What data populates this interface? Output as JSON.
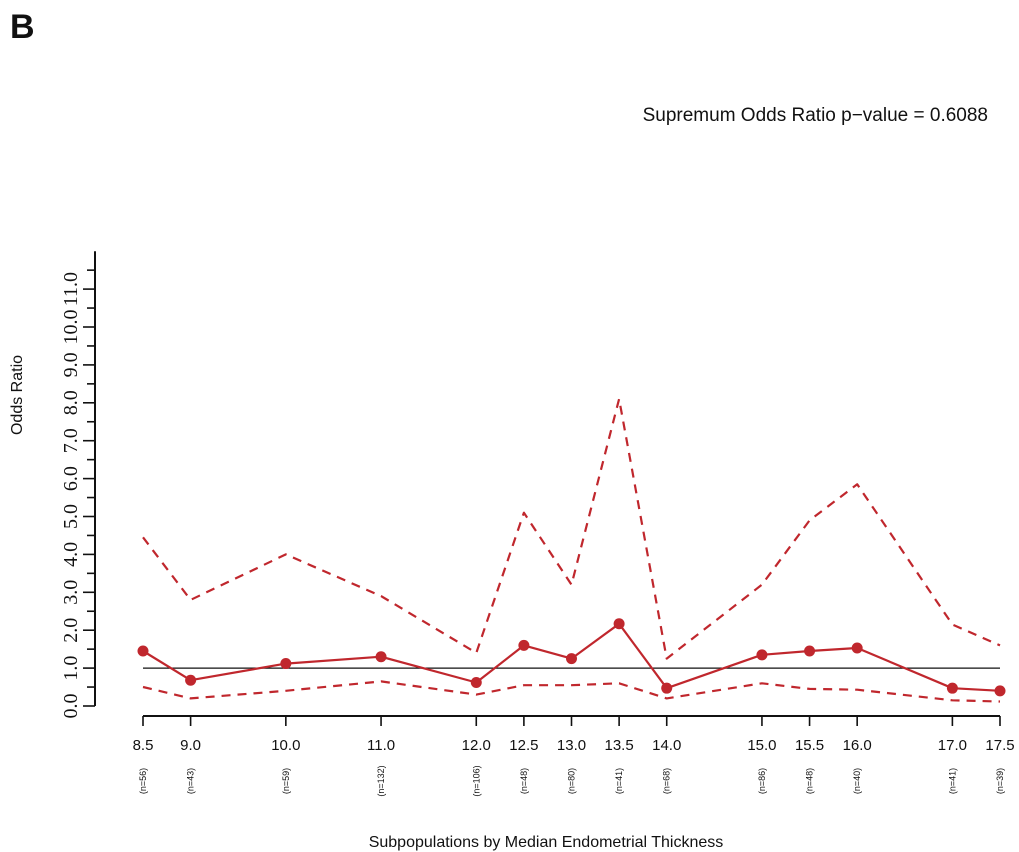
{
  "panel_label": "B",
  "chart_data": {
    "type": "line",
    "title": "",
    "annotation": "Supremum Odds Ratio p−value = 0.6088",
    "xlabel": "Subpopulations by Median Endometrial Thickness",
    "ylabel": "Odds Ratio",
    "x": [
      8.5,
      9.0,
      10.0,
      11.0,
      12.0,
      12.5,
      13.0,
      13.5,
      14.0,
      15.0,
      15.5,
      16.0,
      17.0,
      17.5
    ],
    "x_tick_labels": [
      "8.5",
      "9.0",
      "10.0",
      "11.0",
      "12.0",
      "12.5",
      "13.0",
      "13.5",
      "14.0",
      "15.0",
      "15.5",
      "16.0",
      "17.0",
      "17.5"
    ],
    "n_labels": [
      "(n=56)",
      "(n=43)",
      "(n=59)",
      "(n=132)",
      "(n=106)",
      "(n=48)",
      "(n=80)",
      "(n=41)",
      "(n=68)",
      "(n=86)",
      "(n=48)",
      "(n=40)",
      "(n=41)",
      "(n=39)"
    ],
    "y_tick_labels": [
      "0.0",
      "1.0",
      "2.0",
      "3.0",
      "4.0",
      "5.0",
      "6.0",
      "7.0",
      "8.0",
      "9.0",
      "10.0",
      "11.0"
    ],
    "ylim": [
      0,
      11.5
    ],
    "reference_line": 1.0,
    "series": [
      {
        "role": "estimate",
        "style": "solid-with-points",
        "values": [
          1.45,
          0.68,
          1.12,
          1.3,
          0.62,
          1.6,
          1.25,
          2.17,
          0.47,
          1.35,
          1.45,
          1.53,
          0.47,
          0.4
        ]
      },
      {
        "role": "upper-ci",
        "style": "dashed",
        "values": [
          4.45,
          2.8,
          4.0,
          2.9,
          1.4,
          5.1,
          3.2,
          8.1,
          1.25,
          3.2,
          4.9,
          5.85,
          2.15,
          1.6
        ]
      },
      {
        "role": "lower-ci",
        "style": "dashed",
        "values": [
          0.5,
          0.2,
          0.4,
          0.65,
          0.3,
          0.55,
          0.55,
          0.6,
          0.2,
          0.6,
          0.45,
          0.43,
          0.15,
          0.12
        ]
      }
    ],
    "colors": {
      "series": "#c0272d",
      "axis": "#111111",
      "reference": "#111111"
    },
    "grid": false,
    "legend": "none"
  }
}
